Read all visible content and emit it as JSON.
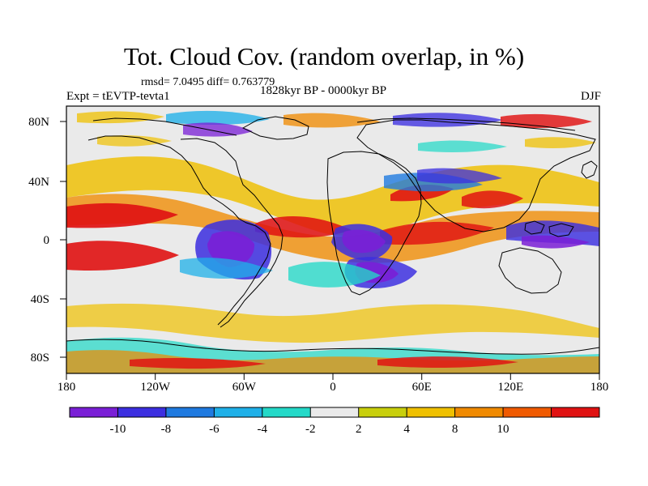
{
  "chart_data": {
    "type": "heatmap",
    "title": "Tot. Cloud Cov. (random overlap, in %)",
    "stats_text": "rmsd= 7.0495 diff= 0.763779",
    "period_text": "1828kyr BP - 0000kyr BP",
    "experiment_text": "Expt = tEVTP-tevta1",
    "season_text": "DJF",
    "x_tick_labels": [
      "180",
      "120W",
      "60W",
      "0",
      "60E",
      "120E",
      "180"
    ],
    "y_tick_labels": [
      "80N",
      "40N",
      "0",
      "40S",
      "80S"
    ],
    "xlim": [
      -180,
      180
    ],
    "ylim": [
      -90,
      90
    ],
    "colorbar_tick_labels": [
      "-10",
      "-8",
      "-6",
      "-4",
      "-2",
      "2",
      "4",
      "8",
      "10"
    ],
    "colorbar_colors": [
      "#7a1fd6",
      "#3c2fe0",
      "#1f7ae0",
      "#1fb0e8",
      "#24d9c8",
      "#eaeaea",
      "#c8cf0c",
      "#efc000",
      "#f08a00",
      "#f05a00",
      "#e01212"
    ]
  }
}
